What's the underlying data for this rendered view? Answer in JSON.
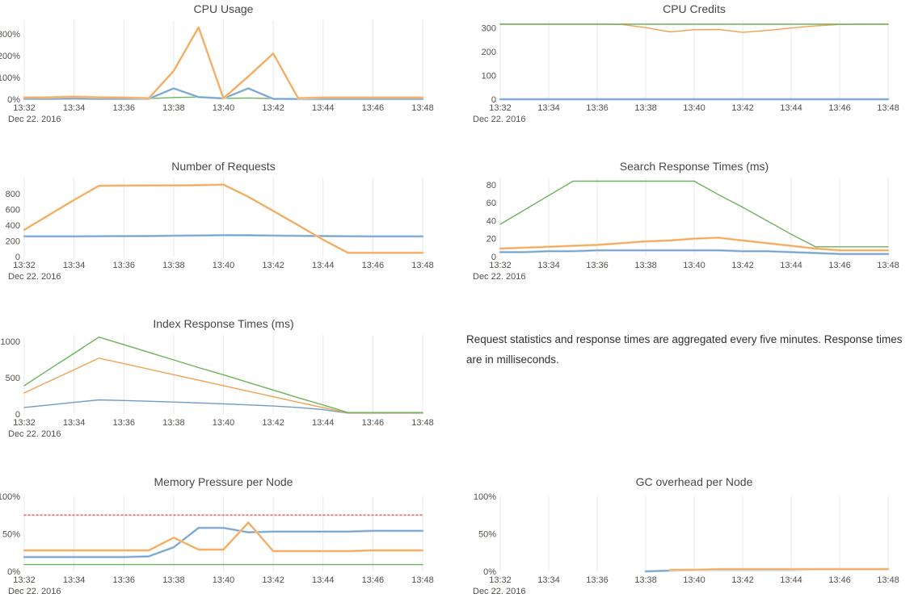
{
  "palette": {
    "blue": "#6d9dc6",
    "blue_light": "#bcd4e9",
    "orange": "#f2a154",
    "orange_light": "#f9d6ab",
    "green": "#6cb25a",
    "green_light": "#c4e3ba",
    "red": "#e87f7f",
    "grid": "#e8e8e8",
    "axis_text": "#54504a",
    "title_text": "#474747",
    "note_text": "#2f2f2f"
  },
  "note": {
    "text": "Request statistics and response times are aggregated every five minutes. Response times are in milliseconds."
  },
  "chart_data": [
    {
      "type": "line",
      "title": "CPU Usage",
      "x_tick_labels": [
        "13:32",
        "13:34",
        "13:36",
        "13:38",
        "13:40",
        "13:42",
        "13:44",
        "13:46",
        "13:48"
      ],
      "date_label": "Dec 22. 2016",
      "x_minutes_range": [
        0,
        16
      ],
      "ylim": [
        0,
        363
      ],
      "y_ticks": [
        {
          "value": 0,
          "label": "0%"
        },
        {
          "value": 100,
          "label": "100%"
        },
        {
          "value": 200,
          "label": "200%"
        },
        {
          "value": 300,
          "label": "300%"
        }
      ],
      "grid": "vertical",
      "legend": "none",
      "series": [
        {
          "name": "cpu-usage-green",
          "color": "green",
          "halo": false,
          "x0": 0,
          "values": [
            3,
            3,
            4,
            3,
            3,
            3,
            8,
            10,
            4,
            6,
            3,
            3,
            3,
            3,
            3,
            3,
            3
          ]
        },
        {
          "name": "cpu-usage-blue",
          "color": "blue",
          "halo": true,
          "x0": 0,
          "values": [
            2,
            2,
            3,
            2,
            2,
            2,
            50,
            10,
            4,
            50,
            2,
            1,
            1,
            1,
            1,
            1,
            1
          ]
        },
        {
          "name": "cpu-usage-orange",
          "color": "orange",
          "halo": true,
          "x0": 0,
          "values": [
            8,
            9,
            12,
            9,
            8,
            5,
            130,
            330,
            5,
            105,
            210,
            5,
            8,
            8,
            8,
            8,
            8
          ]
        }
      ]
    },
    {
      "type": "line",
      "title": "CPU Credits",
      "x_tick_labels": [
        "13:32",
        "13:34",
        "13:36",
        "13:38",
        "13:40",
        "13:42",
        "13:44",
        "13:46",
        "13:48"
      ],
      "date_label": "Dec 22. 2016",
      "x_minutes_range": [
        0,
        16
      ],
      "ylim": [
        0,
        332
      ],
      "y_ticks": [
        {
          "value": 0,
          "label": "0"
        },
        {
          "value": 100,
          "label": "100"
        },
        {
          "value": 200,
          "label": "200"
        },
        {
          "value": 300,
          "label": "300"
        }
      ],
      "grid": "vertical",
      "legend": "none",
      "series": [
        {
          "name": "cpu-credits-blue",
          "color": "blue",
          "halo": true,
          "x0": 0,
          "values": [
            0,
            0,
            0,
            0,
            0,
            0,
            0,
            0,
            0,
            0,
            0,
            0,
            0,
            0,
            0,
            0,
            0
          ]
        },
        {
          "name": "cpu-credits-orange",
          "color": "orange",
          "halo": false,
          "x0": 0,
          "values": [
            315,
            315,
            315,
            315,
            315,
            314,
            301,
            283,
            292,
            293,
            281,
            289,
            299,
            308,
            314,
            315,
            315
          ]
        },
        {
          "name": "cpu-credits-green",
          "color": "green",
          "halo": false,
          "x0": 0,
          "values": [
            315,
            315,
            315,
            315,
            315,
            315,
            315,
            315,
            315,
            315,
            315,
            315,
            315,
            315,
            315,
            315,
            315
          ]
        }
      ]
    },
    {
      "type": "line",
      "title": "Number of Requests",
      "x_tick_labels": [
        "13:32",
        "13:34",
        "13:36",
        "13:38",
        "13:40",
        "13:42",
        "13:44",
        "13:46",
        "13:48"
      ],
      "date_label": "Dec 22. 2016",
      "x_minutes_range": [
        0,
        16
      ],
      "ylim": [
        0,
        1005
      ],
      "y_ticks": [
        {
          "value": 0,
          "label": "0"
        },
        {
          "value": 200,
          "label": "200"
        },
        {
          "value": 400,
          "label": "400"
        },
        {
          "value": 600,
          "label": "600"
        },
        {
          "value": 800,
          "label": "800"
        }
      ],
      "grid": "vertical",
      "legend": "none",
      "series": [
        {
          "name": "requests-blue",
          "color": "blue",
          "halo": true,
          "x0": 0,
          "values": [
            257,
            257,
            257,
            259,
            260,
            262,
            266,
            269,
            273,
            272,
            268,
            264,
            261,
            259,
            257,
            257,
            257
          ]
        },
        {
          "name": "requests-orange",
          "color": "orange",
          "halo": true,
          "x0": 0,
          "values": [
            340,
            530,
            720,
            900,
            903,
            905,
            906,
            908,
            915,
            760,
            580,
            400,
            215,
            48,
            48,
            48,
            48
          ]
        }
      ]
    },
    {
      "type": "line",
      "title": "Search Response Times (ms)",
      "x_tick_labels": [
        "13:32",
        "13:34",
        "13:36",
        "13:38",
        "13:40",
        "13:42",
        "13:44",
        "13:46",
        "13:48"
      ],
      "date_label": "Dec 22. 2016",
      "x_minutes_range": [
        0,
        16
      ],
      "ylim": [
        0,
        88
      ],
      "y_ticks": [
        {
          "value": 0,
          "label": "0"
        },
        {
          "value": 20,
          "label": "20"
        },
        {
          "value": 40,
          "label": "40"
        },
        {
          "value": 60,
          "label": "60"
        },
        {
          "value": 80,
          "label": "80"
        }
      ],
      "grid": "vertical",
      "legend": "none",
      "series": [
        {
          "name": "search-response-blue",
          "color": "blue",
          "halo": true,
          "x0": 0,
          "values": [
            5,
            5,
            6,
            6,
            7,
            7,
            7,
            7,
            7,
            7,
            6,
            6,
            5,
            4,
            3,
            3,
            3
          ]
        },
        {
          "name": "search-response-orange",
          "color": "orange",
          "halo": true,
          "x0": 0,
          "values": [
            9,
            10,
            11,
            12,
            13,
            15,
            17,
            18,
            20,
            21,
            18,
            15,
            12,
            9,
            7,
            7,
            7
          ]
        },
        {
          "name": "search-response-green",
          "color": "green",
          "halo": false,
          "x0": 0,
          "values": [
            36,
            52,
            68,
            84,
            84,
            84,
            84,
            84,
            84,
            69,
            55,
            40,
            25,
            11,
            11,
            11,
            11
          ]
        }
      ]
    },
    {
      "type": "line",
      "title": "Index Response Times (ms)",
      "x_tick_labels": [
        "13:32",
        "13:34",
        "13:36",
        "13:38",
        "13:40",
        "13:42",
        "13:44",
        "13:46",
        "13:48"
      ],
      "date_label": "Dec 22. 2016",
      "x_minutes_range": [
        0,
        16
      ],
      "ylim": [
        0,
        1090
      ],
      "y_ticks": [
        {
          "value": 0,
          "label": "0"
        },
        {
          "value": 500,
          "label": "500"
        },
        {
          "value": 1000,
          "label": "1000"
        }
      ],
      "grid": "vertical",
      "legend": "none",
      "series": [
        {
          "name": "index-response-blue",
          "color": "blue",
          "halo": false,
          "x0": 0,
          "values": [
            90,
            125,
            160,
            195,
            186,
            176,
            165,
            152,
            140,
            126,
            110,
            90,
            60,
            12,
            12,
            12,
            12
          ]
        },
        {
          "name": "index-response-orange",
          "color": "orange",
          "halo": false,
          "x0": 0,
          "values": [
            290,
            450,
            610,
            770,
            694,
            618,
            542,
            466,
            390,
            314,
            238,
            162,
            88,
            15,
            15,
            15,
            15
          ]
        },
        {
          "name": "index-response-green",
          "color": "green",
          "halo": false,
          "x0": 0,
          "values": [
            390,
            615,
            835,
            1060,
            955,
            850,
            745,
            640,
            540,
            435,
            330,
            225,
            125,
            20,
            20,
            20,
            20
          ]
        }
      ]
    },
    {
      "type": "line",
      "title": "Memory Pressure per Node",
      "x_tick_labels": [
        "13:32",
        "13:34",
        "13:36",
        "13:38",
        "13:40",
        "13:42",
        "13:44",
        "13:46",
        "13:48"
      ],
      "date_label": "Dec 22. 2016",
      "x_minutes_range": [
        0,
        16
      ],
      "ylim": [
        0,
        100
      ],
      "y_ticks": [
        {
          "value": 0,
          "label": "0%"
        },
        {
          "value": 50,
          "label": "50%"
        },
        {
          "value": 100,
          "label": "100%"
        }
      ],
      "grid": "vertical",
      "legend": "none",
      "series": [
        {
          "name": "memory-pressure-green",
          "color": "green",
          "halo": false,
          "x0": 0,
          "values": [
            9,
            9,
            9,
            9,
            9,
            9,
            9,
            9,
            9,
            9,
            9,
            9,
            9,
            9,
            9,
            9,
            9
          ]
        },
        {
          "name": "memory-pressure-blue",
          "color": "blue",
          "halo": true,
          "x0": 0,
          "values": [
            19,
            19,
            19,
            19,
            19,
            20,
            32,
            58,
            58,
            52,
            53,
            53,
            53,
            53,
            54,
            54,
            54
          ]
        },
        {
          "name": "memory-pressure-orange",
          "color": "orange",
          "halo": true,
          "x0": 0,
          "values": [
            28,
            28,
            28,
            28,
            28,
            28,
            45,
            29,
            29,
            65,
            27,
            27,
            27,
            27,
            28,
            28,
            28
          ]
        },
        {
          "name": "memory-pressure-threshold",
          "color": "red",
          "dash": true,
          "halo": false,
          "x0": 0,
          "values": [
            75,
            75,
            75,
            75,
            75,
            75,
            75,
            75,
            75,
            75,
            75,
            75,
            75,
            75,
            75,
            75,
            75
          ]
        }
      ]
    },
    {
      "type": "line",
      "title": "GC overhead per Node",
      "x_tick_labels": [
        "13:32",
        "13:34",
        "13:36",
        "13:38",
        "13:40",
        "13:42",
        "13:44",
        "13:46",
        "13:48"
      ],
      "date_label": "Dec 22. 2016",
      "x_minutes_range": [
        0,
        16
      ],
      "ylim": [
        0,
        100
      ],
      "y_ticks": [
        {
          "value": 0,
          "label": "0%"
        },
        {
          "value": 50,
          "label": "50%"
        },
        {
          "value": 100,
          "label": "100%"
        }
      ],
      "grid": "vertical",
      "legend": "none",
      "series": [
        {
          "name": "gc-overhead-blue",
          "color": "blue",
          "halo": true,
          "x0": 6,
          "values": [
            0,
            1,
            2,
            2,
            2,
            2,
            2,
            3,
            3,
            3,
            3
          ]
        },
        {
          "name": "gc-overhead-orange",
          "color": "orange",
          "halo": true,
          "x0": 7,
          "values": [
            2,
            2,
            3,
            3,
            3,
            3,
            3,
            3,
            3,
            3
          ]
        }
      ]
    }
  ]
}
